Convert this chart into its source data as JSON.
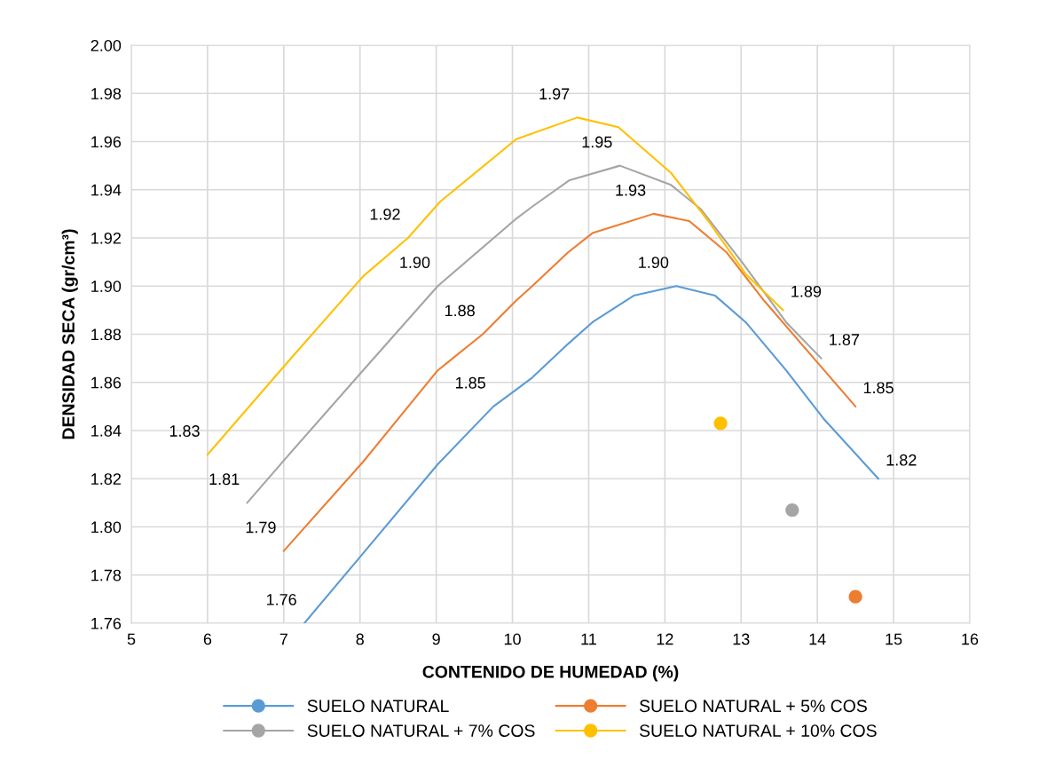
{
  "chart_data": {
    "type": "line",
    "xlabel": "CONTENIDO DE HUMEDAD (%)",
    "ylabel": "DENSIDAD SECA (gr/cm³)",
    "xlim": [
      5,
      16
    ],
    "xticks": [
      5,
      6,
      7,
      8,
      9,
      10,
      11,
      12,
      13,
      14,
      15,
      16
    ],
    "ylim": [
      1.76,
      2.0
    ],
    "yticks": [
      {
        "value": 1.76,
        "label": "1.76"
      },
      {
        "value": 1.78,
        "label": "1.78"
      },
      {
        "value": 1.8,
        "label": "1.80"
      },
      {
        "value": 1.82,
        "label": "1.82"
      },
      {
        "value": 1.84,
        "label": "1.84"
      },
      {
        "value": 1.86,
        "label": "1.86"
      },
      {
        "value": 1.88,
        "label": "1.88"
      },
      {
        "value": 1.9,
        "label": "1.90"
      },
      {
        "value": 1.92,
        "label": "1.92"
      },
      {
        "value": 1.94,
        "label": "1.94"
      },
      {
        "value": 1.96,
        "label": "1.96"
      },
      {
        "value": 1.98,
        "label": "1.98"
      },
      {
        "value": 2.0,
        "label": "2.00"
      }
    ],
    "grid": true,
    "legend": "bottom",
    "series": [
      {
        "name": "SUELO NATURAL",
        "color": "#5b9bd5",
        "x": [
          7.27,
          8.04,
          9.02,
          9.75,
          10.05,
          10.26,
          10.73,
          11.05,
          11.59,
          12.15,
          12.66,
          13.06,
          13.59,
          14.08,
          14.8
        ],
        "values": [
          1.76,
          1.789,
          1.826,
          1.85,
          1.857,
          1.862,
          1.876,
          1.885,
          1.896,
          1.9,
          1.896,
          1.885,
          1.865,
          1.845,
          1.82
        ],
        "value_labels": [
          "1.76",
          null,
          null,
          "1.85",
          null,
          null,
          null,
          null,
          null,
          "1.90",
          null,
          null,
          null,
          null,
          "1.82"
        ]
      },
      {
        "name": "SUELO NATURAL + 5% COS",
        "color": "#ed7d31",
        "x": [
          7.0,
          8.04,
          9.02,
          9.61,
          10.05,
          10.26,
          10.73,
          11.05,
          11.85,
          12.32,
          12.81,
          13.3,
          13.79,
          14.5
        ],
        "values": [
          1.79,
          1.827,
          1.865,
          1.88,
          1.894,
          1.9,
          1.914,
          1.922,
          1.93,
          1.927,
          1.914,
          1.894,
          1.876,
          1.85
        ],
        "value_labels": [
          "1.79",
          null,
          null,
          "1.88",
          null,
          null,
          null,
          null,
          "1.93",
          null,
          null,
          null,
          null,
          "1.85"
        ]
      },
      {
        "name": "SUELO NATURAL + 7% COS",
        "color": "#a5a5a5",
        "x": [
          6.52,
          7.04,
          8.04,
          9.02,
          10.05,
          10.26,
          10.75,
          11.41,
          12.08,
          12.47,
          13.01,
          13.59,
          14.05
        ],
        "values": [
          1.81,
          1.829,
          1.865,
          1.9,
          1.928,
          1.933,
          1.944,
          1.95,
          1.942,
          1.932,
          1.91,
          1.885,
          1.87
        ],
        "value_labels": [
          "1.81",
          null,
          null,
          "1.90",
          null,
          null,
          null,
          "1.95",
          null,
          null,
          null,
          null,
          "1.87"
        ]
      },
      {
        "name": "SUELO NATURAL + 10% COS",
        "color": "#ffc000",
        "x": [
          6.0,
          7.04,
          8.04,
          8.63,
          9.05,
          10.05,
          10.85,
          11.39,
          12.08,
          12.57,
          13.06,
          13.55
        ],
        "values": [
          1.83,
          1.868,
          1.904,
          1.92,
          1.935,
          1.961,
          1.97,
          1.966,
          1.947,
          1.927,
          1.905,
          1.89
        ],
        "value_labels": [
          "1.83",
          null,
          null,
          "1.92",
          null,
          null,
          "1.97",
          null,
          null,
          null,
          null,
          "1.89"
        ]
      },
      {
        "type": "scatter",
        "marker": "circle",
        "color": "#ffc000",
        "x": [
          12.73
        ],
        "values": [
          1.843
        ]
      },
      {
        "type": "scatter",
        "marker": "circle",
        "color": "#a5a5a5",
        "x": [
          13.67
        ],
        "values": [
          1.807
        ]
      },
      {
        "type": "scatter",
        "marker": "circle",
        "color": "#ed7d31",
        "x": [
          14.5
        ],
        "values": [
          1.771
        ]
      }
    ]
  }
}
